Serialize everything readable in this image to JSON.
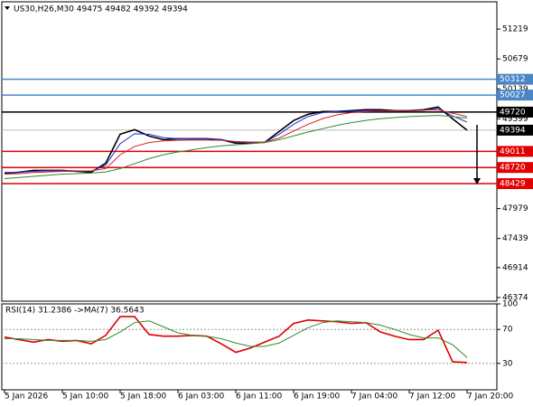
{
  "chart_data": [
    {
      "type": "line",
      "title": "US30,H26,M30  49475 49482 49392 49394",
      "categories": [
        "5 Jan 2026",
        null,
        null,
        null,
        "5 Jan 10:00",
        null,
        null,
        null,
        "5 Jan 18:00",
        null,
        null,
        null,
        "6 Jan 03:00",
        null,
        null,
        null,
        "6 Jan 11:00",
        null,
        null,
        null,
        "6 Jan 19:00",
        null,
        null,
        null,
        "7 Jan 04:00",
        null,
        null,
        null,
        "7 Jan 12:00",
        null,
        null,
        null,
        "7 Jan 20:00"
      ],
      "series": [
        {
          "color": "#000000",
          "values": [
            48618,
            48634,
            48667,
            48667,
            48667,
            48650,
            48634,
            48797,
            49321,
            49403,
            49288,
            49223,
            49239,
            49239,
            49239,
            49223,
            49158,
            49158,
            49174,
            49370,
            49567,
            49681,
            49730,
            49730,
            49747,
            49763,
            49763,
            49747,
            49747,
            49763,
            49812,
            49599,
            49394
          ]
        },
        {
          "color": "#1f2fd6",
          "values": [
            48630,
            48635,
            48650,
            48660,
            48665,
            48660,
            48655,
            48760,
            49150,
            49330,
            49320,
            49260,
            49240,
            49235,
            49235,
            49225,
            49180,
            49170,
            49175,
            49320,
            49500,
            49640,
            49710,
            49730,
            49740,
            49745,
            49745,
            49745,
            49745,
            49750,
            49790,
            49650,
            49540
          ]
        },
        {
          "color": "#d62020",
          "values": [
            48600,
            48610,
            48630,
            48640,
            48650,
            48655,
            48660,
            48700,
            48950,
            49100,
            49170,
            49200,
            49210,
            49215,
            49215,
            49210,
            49190,
            49180,
            49180,
            49250,
            49380,
            49500,
            49600,
            49670,
            49710,
            49730,
            49740,
            49745,
            49750,
            49755,
            49760,
            49700,
            49640
          ]
        },
        {
          "color": "#2e8b2e",
          "values": [
            48520,
            48540,
            48560,
            48580,
            48600,
            48610,
            48620,
            48640,
            48700,
            48790,
            48880,
            48950,
            49000,
            49040,
            49080,
            49110,
            49130,
            49150,
            49170,
            49220,
            49290,
            49360,
            49420,
            49480,
            49530,
            49570,
            49600,
            49620,
            49640,
            49650,
            49660,
            49640,
            49610
          ]
        }
      ],
      "ylim": [
        46308,
        51661
      ],
      "yticks": [
        51219,
        50679,
        50139,
        49599,
        47979,
        47439,
        46914,
        46374
      ],
      "levels": [
        {
          "value": 50312,
          "color": "#4a86c5"
        },
        {
          "value": 50027,
          "color": "#4a86c5"
        },
        {
          "value": 49720,
          "color": "#000000"
        },
        {
          "value": 49011,
          "color": "#e00000"
        },
        {
          "value": 48720,
          "color": "#e00000"
        },
        {
          "value": 48429,
          "color": "#e00000"
        }
      ],
      "last_price": 49394
    },
    {
      "type": "line",
      "title": "RSI(14) 31.2386  ->MA(7) 36.5643",
      "series": [
        {
          "color": "#e00000",
          "values": [
            61,
            58,
            55,
            58,
            56,
            57,
            53,
            63,
            85,
            85,
            64,
            62,
            62,
            63,
            62,
            53,
            43,
            48,
            55,
            62,
            77,
            81,
            80,
            79,
            77,
            78,
            67,
            62,
            58,
            58,
            69,
            32,
            31
          ]
        },
        {
          "color": "#2e8b2e",
          "values": [
            59,
            59,
            58,
            57,
            57,
            57,
            56,
            58,
            67,
            78,
            80,
            73,
            66,
            63,
            62,
            59,
            54,
            50,
            50,
            54,
            63,
            72,
            78,
            80,
            79,
            78,
            75,
            70,
            64,
            60,
            60,
            52,
            37
          ]
        }
      ],
      "ylim": [
        0,
        100
      ],
      "yticks": [
        100,
        70,
        30
      ]
    }
  ]
}
